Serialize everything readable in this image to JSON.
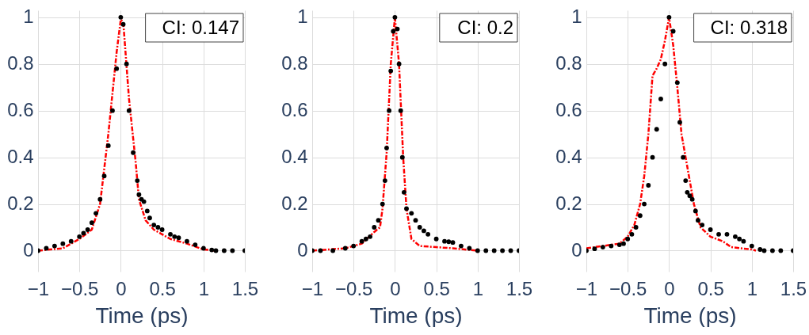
{
  "chart_data": [
    {
      "type": "line",
      "xlabel": "Time (ps)",
      "annotations": [
        "CI: 0.147"
      ],
      "xlim": [
        -1,
        1.5
      ],
      "ylim": [
        -0.09,
        1.03
      ],
      "xticks": [
        -1,
        -0.5,
        0,
        0.5,
        1,
        1.5
      ],
      "yticks": [
        0,
        0.2,
        0.4,
        0.6,
        0.8,
        1
      ],
      "grid": true,
      "series": [
        {
          "type": "scatter",
          "marker": "circle",
          "color": "#000000",
          "x": [
            -1,
            -0.9,
            -0.8,
            -0.7,
            -0.6,
            -0.5,
            -0.45,
            -0.4,
            -0.35,
            -0.3,
            -0.25,
            -0.2,
            -0.15,
            -0.1,
            -0.05,
            0,
            0.03,
            0.07,
            0.1,
            0.15,
            0.2,
            0.22,
            0.25,
            0.28,
            0.32,
            0.35,
            0.4,
            0.45,
            0.5,
            0.6,
            0.65,
            0.7,
            0.8,
            0.9,
            1.0,
            1.1,
            1.15,
            1.25,
            1.35,
            1.5
          ],
          "values": [
            0,
            0.01,
            0.02,
            0.03,
            0.04,
            0.06,
            0.075,
            0.09,
            0.12,
            0.16,
            0.22,
            0.32,
            0.45,
            0.6,
            0.78,
            1.0,
            0.97,
            0.8,
            0.6,
            0.42,
            0.3,
            0.24,
            0.22,
            0.21,
            0.17,
            0.14,
            0.11,
            0.1,
            0.09,
            0.07,
            0.06,
            0.055,
            0.04,
            0.025,
            0.01,
            0.003,
            0,
            0,
            0,
            0
          ]
        },
        {
          "line_style": "dashed",
          "color": "#ff0000",
          "x": [
            -1,
            -0.7,
            -0.5,
            -0.35,
            -0.25,
            -0.15,
            -0.05,
            0,
            0.03,
            0.1,
            0.18,
            0.22,
            0.3,
            0.4,
            0.6,
            0.8,
            1.0,
            1.15
          ],
          "values": [
            0,
            0.01,
            0.05,
            0.09,
            0.2,
            0.5,
            0.85,
            0.99,
            0.98,
            0.65,
            0.38,
            0.22,
            0.13,
            0.09,
            0.05,
            0.03,
            0.005,
            0
          ]
        }
      ]
    },
    {
      "type": "line",
      "xlabel": "Time (ps)",
      "annotations": [
        "CI: 0.2"
      ],
      "xlim": [
        -1,
        1.5
      ],
      "ylim": [
        -0.09,
        1.03
      ],
      "xticks": [
        -1,
        -0.5,
        0,
        0.5,
        1,
        1.5
      ],
      "yticks": [
        0,
        0.2,
        0.4,
        0.6,
        0.8,
        1
      ],
      "grid": true,
      "series": [
        {
          "type": "scatter",
          "marker": "circle",
          "color": "#000000",
          "x": [
            -1,
            -0.9,
            -0.75,
            -0.6,
            -0.5,
            -0.4,
            -0.35,
            -0.3,
            -0.25,
            -0.2,
            -0.15,
            -0.12,
            -0.1,
            -0.07,
            -0.05,
            -0.02,
            0,
            0.03,
            0.05,
            0.07,
            0.09,
            0.11,
            0.14,
            0.2,
            0.25,
            0.3,
            0.35,
            0.4,
            0.5,
            0.6,
            0.65,
            0.7,
            0.8,
            0.9,
            1.0,
            1.1,
            1.2,
            1.3,
            1.4,
            1.5
          ],
          "values": [
            0,
            0,
            0,
            0.01,
            0.02,
            0.04,
            0.05,
            0.06,
            0.1,
            0.13,
            0.2,
            0.3,
            0.44,
            0.6,
            0.77,
            0.94,
            1.0,
            0.95,
            0.8,
            0.6,
            0.4,
            0.25,
            0.18,
            0.16,
            0.13,
            0.1,
            0.085,
            0.07,
            0.05,
            0.04,
            0.038,
            0.035,
            0.02,
            0.01,
            0,
            0,
            0,
            0,
            0,
            0
          ]
        },
        {
          "line_style": "dashed",
          "color": "#ff0000",
          "x": [
            -1,
            -0.6,
            -0.4,
            -0.25,
            -0.18,
            -0.15,
            -0.1,
            -0.05,
            0,
            0.05,
            0.1,
            0.14,
            0.2,
            0.3,
            0.5,
            0.7,
            1.0
          ],
          "values": [
            0,
            0.01,
            0.03,
            0.08,
            0.1,
            0.18,
            0.42,
            0.8,
            1.0,
            0.8,
            0.4,
            0.18,
            0.05,
            0.02,
            0.015,
            0.01,
            0
          ]
        }
      ]
    },
    {
      "type": "line",
      "xlabel": "Time (ps)",
      "annotations": [
        "CI: 0.318"
      ],
      "xlim": [
        -1,
        1.5
      ],
      "ylim": [
        -0.09,
        1.03
      ],
      "xticks": [
        -1,
        -0.5,
        0,
        0.5,
        1,
        1.5
      ],
      "yticks": [
        0,
        0.2,
        0.4,
        0.6,
        0.8,
        1
      ],
      "grid": true,
      "series": [
        {
          "type": "scatter",
          "marker": "circle",
          "color": "#000000",
          "x": [
            -1,
            -0.9,
            -0.8,
            -0.7,
            -0.6,
            -0.55,
            -0.5,
            -0.45,
            -0.4,
            -0.35,
            -0.3,
            -0.25,
            -0.2,
            -0.15,
            -0.1,
            -0.05,
            0,
            0.05,
            0.1,
            0.13,
            0.17,
            0.2,
            0.22,
            0.25,
            0.28,
            0.32,
            0.35,
            0.4,
            0.5,
            0.6,
            0.7,
            0.8,
            0.85,
            0.9,
            1.0,
            1.1,
            1.15,
            1.25,
            1.35,
            1.5
          ],
          "values": [
            0,
            0.008,
            0.015,
            0.02,
            0.025,
            0.03,
            0.05,
            0.07,
            0.1,
            0.15,
            0.2,
            0.28,
            0.4,
            0.52,
            0.65,
            0.8,
            1.0,
            0.94,
            0.72,
            0.55,
            0.4,
            0.3,
            0.25,
            0.235,
            0.22,
            0.17,
            0.13,
            0.11,
            0.09,
            0.07,
            0.07,
            0.06,
            0.05,
            0.04,
            0.02,
            0.005,
            0,
            0,
            0,
            0
          ]
        },
        {
          "line_style": "dashed",
          "color": "#ff0000",
          "x": [
            -1,
            -0.8,
            -0.6,
            -0.5,
            -0.42,
            -0.35,
            -0.3,
            -0.25,
            -0.2,
            -0.15,
            -0.1,
            -0.05,
            0,
            0.05,
            0.1,
            0.15,
            0.2,
            0.3,
            0.38,
            0.5,
            0.65,
            0.75,
            1.0,
            1.05
          ],
          "values": [
            0.01,
            0.02,
            0.03,
            0.06,
            0.11,
            0.2,
            0.32,
            0.5,
            0.75,
            0.78,
            0.82,
            0.9,
            1.0,
            0.88,
            0.7,
            0.5,
            0.4,
            0.2,
            0.1,
            0.06,
            0.04,
            0.015,
            0.005,
            0
          ]
        }
      ]
    }
  ]
}
